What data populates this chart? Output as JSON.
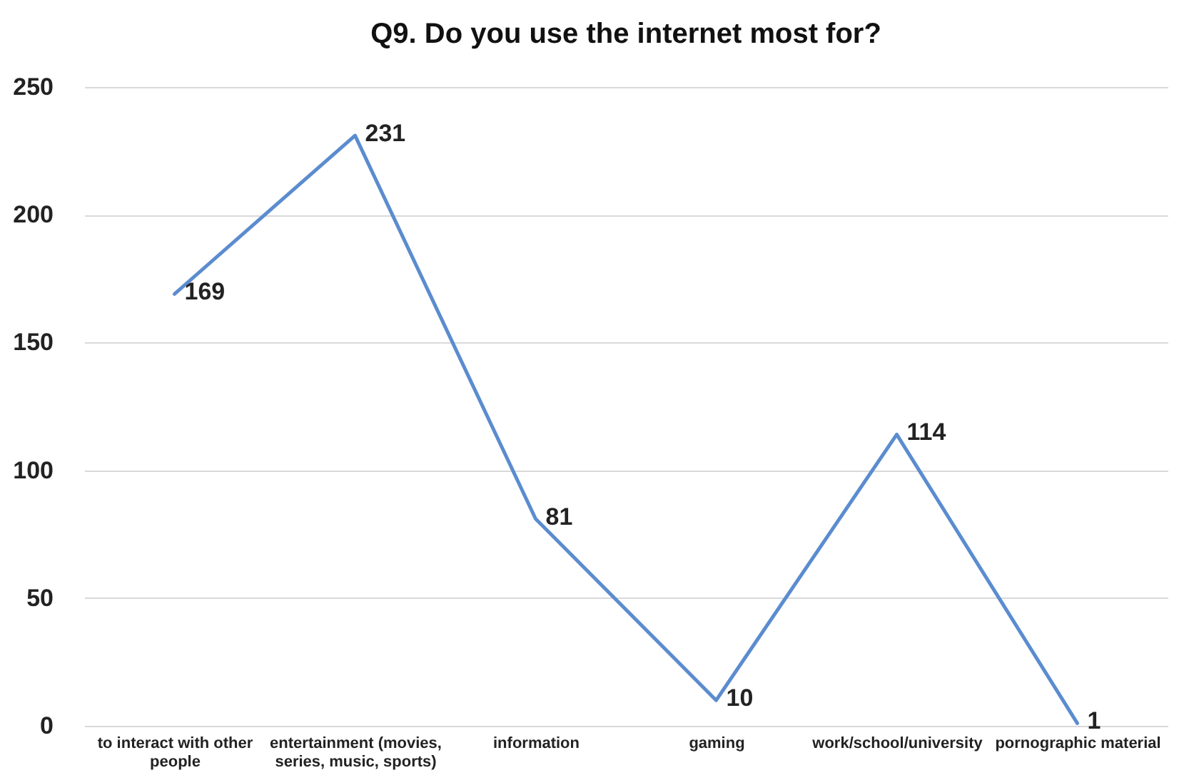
{
  "chart_data": {
    "type": "line",
    "title": "Q9. Do you use the internet most for?",
    "categories": [
      "to interact with other people",
      "entertainment (movies, series, music, sports)",
      "information",
      "gaming",
      "work/school/university",
      "pornographic material"
    ],
    "series": [
      {
        "color": "#5b8ccf",
        "values": [
          169,
          231,
          81,
          10,
          114,
          1
        ]
      }
    ],
    "ylim": [
      0,
      250
    ],
    "yticks": [
      0,
      50,
      100,
      150,
      200,
      250
    ],
    "grid": "y",
    "data_labels": true,
    "marker": "none",
    "line_style": "solid"
  }
}
